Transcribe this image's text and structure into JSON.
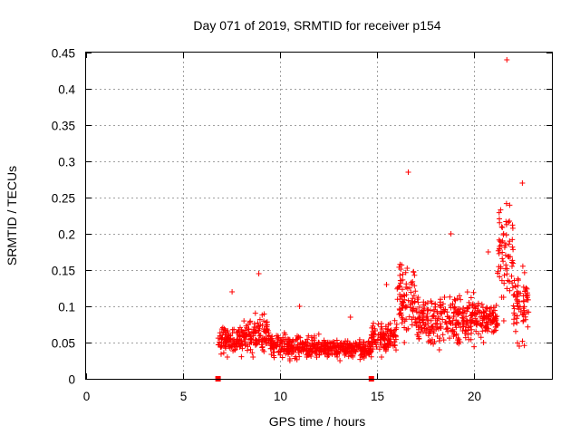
{
  "chart_data": {
    "type": "scatter",
    "title": "Day 071 of 2019, SRMTID for receiver p154",
    "xlabel": "GPS time / hours",
    "ylabel": "SRMTID / TECUs",
    "xlim": [
      0,
      24
    ],
    "ylim": [
      0,
      0.45
    ],
    "xticks": [
      0,
      5,
      10,
      15,
      20
    ],
    "xtick_labels": [
      "0",
      "5",
      "10",
      "15",
      "20"
    ],
    "yticks": [
      0,
      0.05,
      0.1,
      0.15,
      0.2,
      0.25,
      0.3,
      0.35,
      0.4,
      0.45
    ],
    "ytick_labels": [
      "0",
      "0.05",
      "0.1",
      "0.15",
      "0.2",
      "0.25",
      "0.3",
      "0.35",
      "0.4",
      "0.45"
    ],
    "grid": true,
    "marker": "plus",
    "color": "#ff0000",
    "series": [
      {
        "name": "SRMTID",
        "segments": [
          {
            "x_start": 6.8,
            "x_end": 8.0,
            "y_min": 0.03,
            "y_max": 0.12
          },
          {
            "x_start": 8.0,
            "x_end": 9.5,
            "y_min": 0.03,
            "y_max": 0.145
          },
          {
            "x_start": 9.5,
            "x_end": 12.0,
            "y_min": 0.025,
            "y_max": 0.1
          },
          {
            "x_start": 12.0,
            "x_end": 14.7,
            "y_min": 0.025,
            "y_max": 0.085
          },
          {
            "x_start": 14.7,
            "x_end": 16.0,
            "y_min": 0.03,
            "y_max": 0.13
          },
          {
            "x_start": 16.0,
            "x_end": 17.0,
            "y_min": 0.05,
            "y_max": 0.285
          },
          {
            "x_start": 17.0,
            "x_end": 20.0,
            "y_min": 0.04,
            "y_max": 0.2
          },
          {
            "x_start": 20.0,
            "x_end": 21.2,
            "y_min": 0.05,
            "y_max": 0.175
          },
          {
            "x_start": 21.2,
            "x_end": 22.0,
            "y_min": 0.08,
            "y_max": 0.44
          },
          {
            "x_start": 22.0,
            "x_end": 22.8,
            "y_min": 0.045,
            "y_max": 0.27
          }
        ]
      }
    ],
    "zero_markers_x": [
      6.8,
      14.7
    ]
  }
}
